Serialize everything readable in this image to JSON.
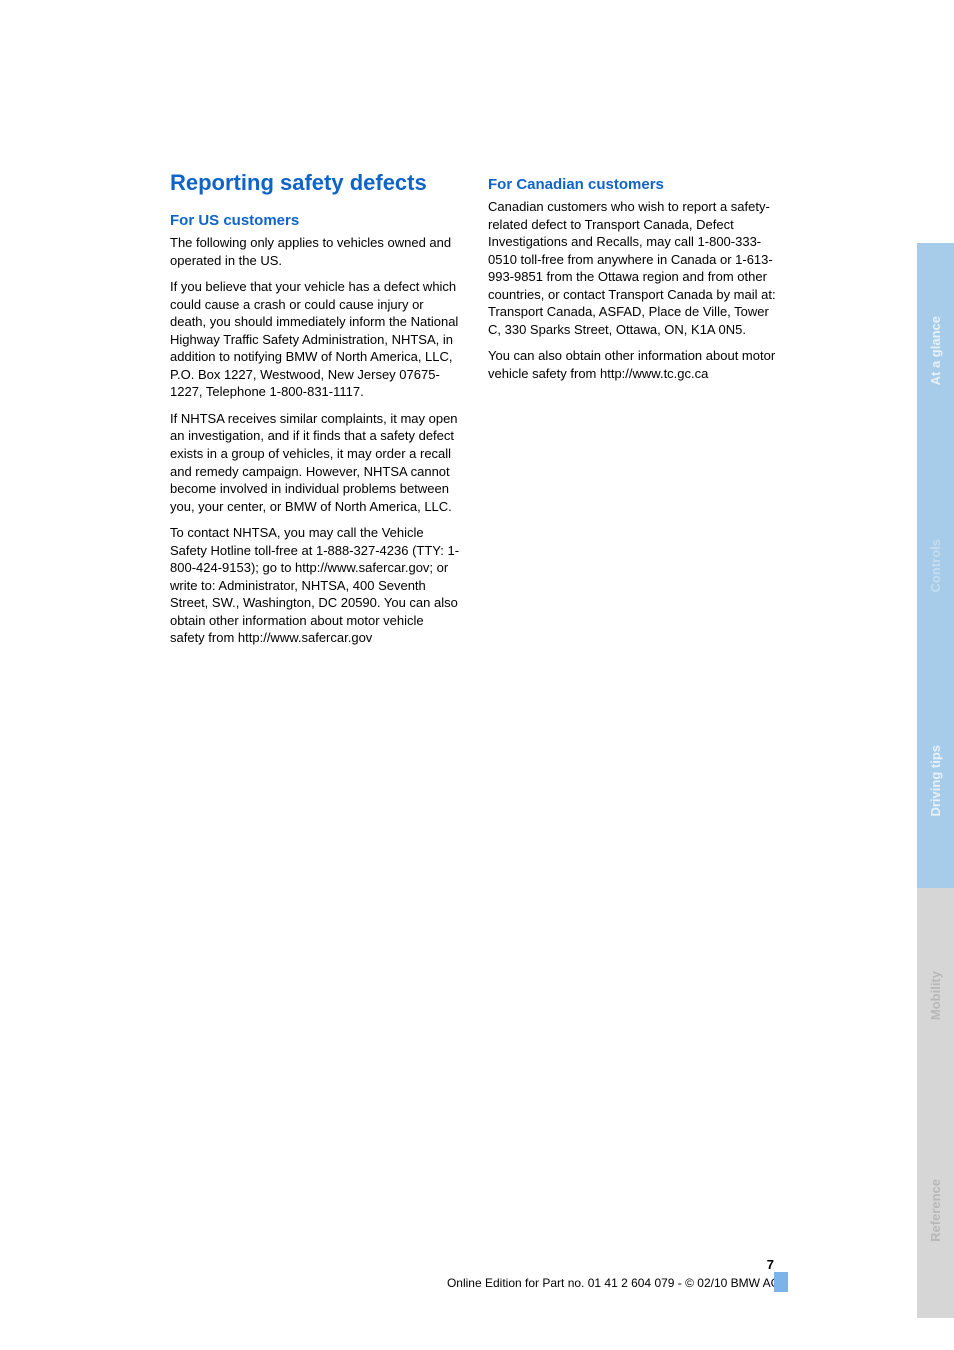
{
  "colors": {
    "blue_heading": "#1064c8",
    "tab_light_blue": "#a7cce9",
    "tab_text_light": "#e6f1f9",
    "tab_text_controls": "#c5dcee",
    "gray_bg": "#d6d6d6",
    "gray_text": "#b8b8b8",
    "body_text": "#000000"
  },
  "heading": "Reporting safety defects",
  "left": {
    "subheading": "For US customers",
    "p1": "The following only applies to vehicles owned and operated in the US.",
    "p2": "If you believe that your vehicle has a defect which could cause a crash or could cause injury or death, you should immediately inform the National Highway Traffic Safety Administration, NHTSA, in addition to notifying BMW of North America, LLC, P.O. Box 1227, Westwood, New Jersey 07675-1227, Telephone 1-800-831-1117.",
    "p3": "If NHTSA receives similar complaints, it may open an investigation, and if it finds that a safety defect exists in a group of vehicles, it may order a recall and remedy campaign. However, NHTSA cannot become involved in individual problems between you, your center, or BMW of North America, LLC.",
    "p4": "To contact NHTSA, you may call the Vehicle Safety Hotline toll-free at 1-888-327-4236 (TTY: 1-800-424-9153); go to http://www.safercar.gov; or write to: Administrator, NHTSA, 400 Seventh Street, SW., Washington, DC 20590. You can also obtain other information about motor vehicle safety from http://www.safercar.gov"
  },
  "right": {
    "subheading": "For Canadian customers",
    "p1": "Canadian customers who wish to report a safety-related defect to Transport Canada, Defect Investigations and Recalls, may call 1-800-333-0510 toll-free from anywhere in Canada or 1-613-993-9851 from the Ottawa region and from other countries, or contact Transport Canada by mail at: Transport Canada, ASFAD, Place de Ville, Tower C, 330 Sparks Street, Ottawa, ON, K1A 0N5.",
    "p2": "You can also obtain other information about motor vehicle safety from http://www.tc.gc.ca"
  },
  "tabs": {
    "t1": "At a glance",
    "t2": "Controls",
    "t3": "Driving tips",
    "t4": "Mobility",
    "t5": "Reference"
  },
  "footer": {
    "page_num": "7",
    "edition": "Online Edition for Part no. 01 41 2 604 079 - © 02/10 BMW AG"
  },
  "typography": {
    "heading_fontsize": 22,
    "subheading_fontsize": 15,
    "body_fontsize": 13,
    "footer_fontsize": 12,
    "tab_fontsize": 13
  }
}
